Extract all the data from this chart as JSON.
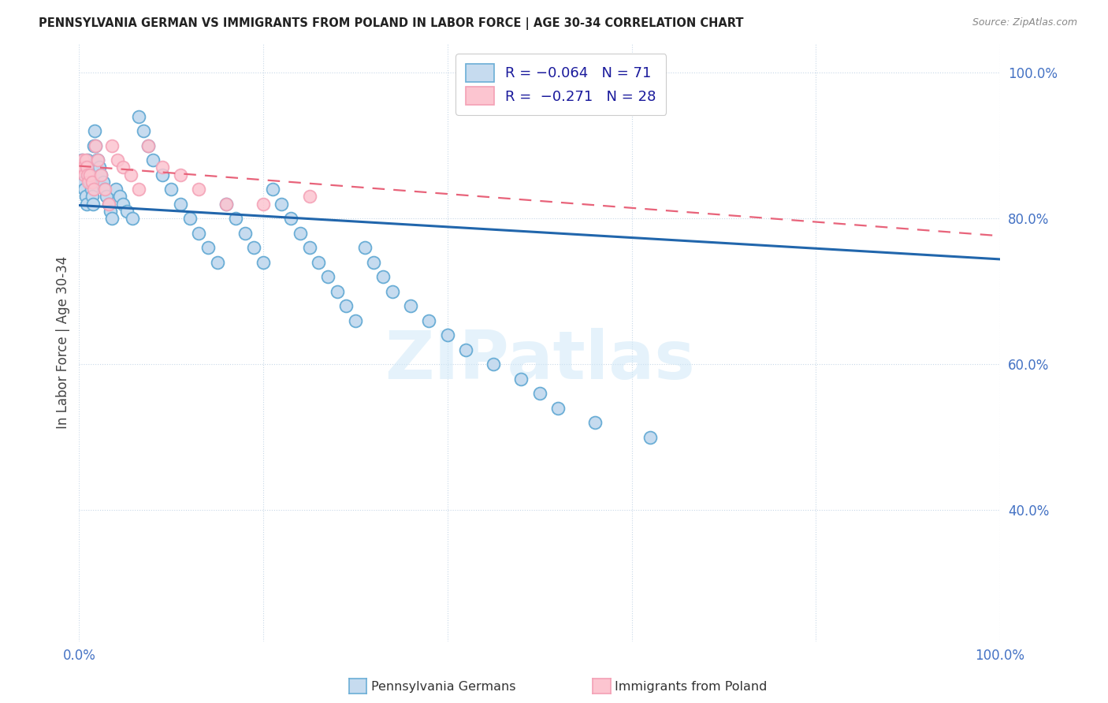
{
  "title": "PENNSYLVANIA GERMAN VS IMMIGRANTS FROM POLAND IN LABOR FORCE | AGE 30-34 CORRELATION CHART",
  "source": "Source: ZipAtlas.com",
  "ylabel": "In Labor Force | Age 30-34",
  "blue_color": "#6baed6",
  "blue_face": "#c6dbef",
  "pink_color": "#f4a0b5",
  "pink_face": "#fcc5d0",
  "trend_blue": "#2166ac",
  "trend_pink": "#e8637a",
  "watermark_color": "#d0e8f8",
  "blue_scatter_x": [
    0.003,
    0.004,
    0.005,
    0.006,
    0.007,
    0.008,
    0.009,
    0.01,
    0.011,
    0.012,
    0.013,
    0.014,
    0.015,
    0.016,
    0.017,
    0.018,
    0.019,
    0.02,
    0.022,
    0.024,
    0.026,
    0.028,
    0.03,
    0.032,
    0.034,
    0.036,
    0.04,
    0.044,
    0.048,
    0.052,
    0.058,
    0.065,
    0.07,
    0.075,
    0.08,
    0.09,
    0.1,
    0.11,
    0.12,
    0.13,
    0.14,
    0.15,
    0.16,
    0.17,
    0.18,
    0.19,
    0.2,
    0.21,
    0.22,
    0.23,
    0.24,
    0.25,
    0.26,
    0.27,
    0.28,
    0.29,
    0.3,
    0.31,
    0.32,
    0.33,
    0.34,
    0.36,
    0.38,
    0.4,
    0.42,
    0.45,
    0.48,
    0.5,
    0.52,
    0.56,
    0.62
  ],
  "blue_scatter_y": [
    0.88,
    0.86,
    0.85,
    0.84,
    0.83,
    0.82,
    0.88,
    0.87,
    0.86,
    0.85,
    0.84,
    0.83,
    0.82,
    0.9,
    0.92,
    0.9,
    0.88,
    0.88,
    0.87,
    0.86,
    0.85,
    0.84,
    0.83,
    0.82,
    0.81,
    0.8,
    0.84,
    0.83,
    0.82,
    0.81,
    0.8,
    0.94,
    0.92,
    0.9,
    0.88,
    0.86,
    0.84,
    0.82,
    0.8,
    0.78,
    0.76,
    0.74,
    0.82,
    0.8,
    0.78,
    0.76,
    0.74,
    0.84,
    0.82,
    0.8,
    0.78,
    0.76,
    0.74,
    0.72,
    0.7,
    0.68,
    0.66,
    0.76,
    0.74,
    0.72,
    0.7,
    0.68,
    0.66,
    0.64,
    0.62,
    0.6,
    0.58,
    0.56,
    0.54,
    0.52,
    0.5
  ],
  "pink_scatter_x": [
    0.003,
    0.004,
    0.005,
    0.006,
    0.007,
    0.008,
    0.009,
    0.01,
    0.012,
    0.014,
    0.016,
    0.018,
    0.02,
    0.024,
    0.028,
    0.032,
    0.036,
    0.042,
    0.048,
    0.056,
    0.065,
    0.075,
    0.09,
    0.11,
    0.13,
    0.16,
    0.2,
    0.25
  ],
  "pink_scatter_y": [
    0.87,
    0.88,
    0.87,
    0.86,
    0.88,
    0.87,
    0.86,
    0.85,
    0.86,
    0.85,
    0.84,
    0.9,
    0.88,
    0.86,
    0.84,
    0.82,
    0.9,
    0.88,
    0.87,
    0.86,
    0.84,
    0.9,
    0.87,
    0.86,
    0.84,
    0.82,
    0.82,
    0.83
  ],
  "blue_trend_x0": 0.0,
  "blue_trend_x1": 1.0,
  "blue_trend_y0": 0.818,
  "blue_trend_y1": 0.744,
  "pink_trend_x0": 0.0,
  "pink_trend_x1": 1.0,
  "pink_trend_y0": 0.872,
  "pink_trend_y1": 0.776,
  "xlim": [
    0.0,
    1.0
  ],
  "ylim": [
    0.22,
    1.04
  ],
  "yticks": [
    0.4,
    0.6,
    0.8,
    1.0
  ],
  "ytick_labels": [
    "40.0%",
    "60.0%",
    "80.0%",
    "100.0%"
  ],
  "xtick_labels": [
    "0.0%",
    "",
    "",
    "",
    "",
    "100.0%"
  ],
  "xticks": [
    0.0,
    0.2,
    0.4,
    0.6,
    0.8,
    1.0
  ]
}
